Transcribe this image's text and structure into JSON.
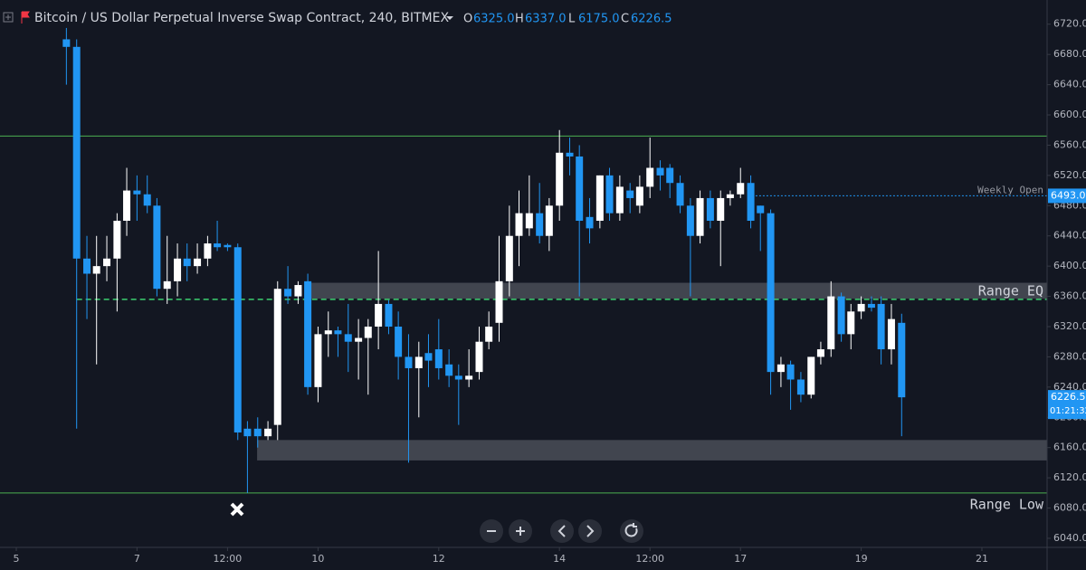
{
  "chart_data": {
    "type": "candlestick",
    "title": "Bitcoin / US Dollar Perpetual Inverse Swap Contract, 240, BITMEX",
    "ohlc_legend": [
      {
        "key": "O",
        "value": 6325,
        "label": "6325.0"
      },
      {
        "key": "H",
        "value": 6337,
        "label": "6337.0"
      },
      {
        "key": "L",
        "value": 6175,
        "label": "6175.0"
      },
      {
        "key": "C",
        "value": 6226.5,
        "label": "6226.5"
      }
    ],
    "up_color": "#ffffff",
    "down_color": "#2196f3",
    "x": [
      5.83,
      6.0,
      6.17,
      6.33,
      6.5,
      6.67,
      6.83,
      7.0,
      7.17,
      7.33,
      7.5,
      7.67,
      7.83,
      8.0,
      8.17,
      8.33,
      8.5,
      8.67,
      8.83,
      9.0,
      9.17,
      9.33,
      9.5,
      9.67,
      9.83,
      10.0,
      10.17,
      10.33,
      10.5,
      10.67,
      10.83,
      11.0,
      11.17,
      11.33,
      11.5,
      11.67,
      11.83,
      12.0,
      12.17,
      12.33,
      12.5,
      12.67,
      12.83,
      13.0,
      13.17,
      13.33,
      13.5,
      13.67,
      13.83,
      14.0,
      14.17,
      14.33,
      14.5,
      14.67,
      14.83,
      15.0,
      15.17,
      15.33,
      15.5,
      15.67,
      15.83,
      16.0,
      16.17,
      16.33,
      16.5,
      16.67,
      16.83,
      17.0,
      17.17,
      17.33,
      17.5,
      17.67,
      17.83,
      18.0,
      18.17,
      18.33,
      18.5,
      18.67,
      18.83,
      19.0,
      19.17,
      19.33,
      19.5,
      19.67
    ],
    "open": [
      6700,
      6690,
      6410,
      6390,
      6400,
      6410,
      6460,
      6500,
      6495,
      6480,
      6370,
      6380,
      6410,
      6400,
      6410,
      6430,
      6428,
      6425,
      6185,
      6185,
      6175,
      6190,
      6370,
      6360,
      6380,
      6240,
      6310,
      6315,
      6310,
      6300,
      6305,
      6320,
      6350,
      6320,
      6280,
      6265,
      6285,
      6290,
      6270,
      6255,
      6250,
      6260,
      6300,
      6325,
      6380,
      6440,
      6450,
      6470,
      6440,
      6480,
      6550,
      6545,
      6465,
      6460,
      6520,
      6470,
      6500,
      6480,
      6505,
      6530,
      6530,
      6510,
      6480,
      6440,
      6490,
      6460,
      6490,
      6495,
      6510,
      6480,
      6470,
      6260,
      6270,
      6250,
      6230,
      6280,
      6290,
      6360,
      6310,
      6340,
      6350,
      6350,
      6290,
      6325
    ],
    "high": [
      6715,
      6700,
      6440,
      6440,
      6440,
      6470,
      6530,
      6520,
      6520,
      6490,
      6440,
      6430,
      6430,
      6430,
      6440,
      6460,
      6430,
      6430,
      6195,
      6200,
      6195,
      6380,
      6400,
      6380,
      6390,
      6320,
      6340,
      6320,
      6350,
      6330,
      6330,
      6420,
      6355,
      6340,
      6310,
      6300,
      6310,
      6330,
      6290,
      6270,
      6290,
      6320,
      6340,
      6440,
      6480,
      6500,
      6520,
      6510,
      6490,
      6580,
      6570,
      6560,
      6490,
      6520,
      6530,
      6520,
      6510,
      6520,
      6570,
      6540,
      6535,
      6520,
      6490,
      6500,
      6500,
      6500,
      6500,
      6530,
      6520,
      6480,
      6475,
      6280,
      6275,
      6260,
      6280,
      6300,
      6380,
      6365,
      6350,
      6360,
      6360,
      6360,
      6350,
      6337
    ],
    "low": [
      6640,
      6185,
      6330,
      6270,
      6380,
      6340,
      6440,
      6460,
      6470,
      6360,
      6350,
      6360,
      6380,
      6390,
      6400,
      6420,
      6420,
      6170,
      6100,
      6160,
      6170,
      6170,
      6350,
      6350,
      6230,
      6220,
      6280,
      6280,
      6260,
      6250,
      6230,
      6290,
      6310,
      6250,
      6140,
      6200,
      6240,
      6250,
      6240,
      6190,
      6240,
      6250,
      6290,
      6300,
      6360,
      6400,
      6440,
      6430,
      6420,
      6460,
      6520,
      6360,
      6430,
      6450,
      6460,
      6460,
      6470,
      6470,
      6490,
      6500,
      6490,
      6470,
      6360,
      6430,
      6450,
      6400,
      6480,
      6490,
      6450,
      6420,
      6230,
      6240,
      6210,
      6220,
      6225,
      6270,
      6280,
      6300,
      6290,
      6330,
      6340,
      6270,
      6270,
      6175
    ],
    "close": [
      6690,
      6410,
      6390,
      6400,
      6410,
      6460,
      6500,
      6495,
      6480,
      6370,
      6380,
      6410,
      6400,
      6410,
      6430,
      6425,
      6425,
      6180,
      6175,
      6175,
      6185,
      6370,
      6360,
      6375,
      6240,
      6310,
      6315,
      6310,
      6300,
      6305,
      6320,
      6350,
      6320,
      6280,
      6265,
      6280,
      6275,
      6265,
      6255,
      6250,
      6255,
      6300,
      6320,
      6380,
      6440,
      6470,
      6470,
      6440,
      6480,
      6550,
      6545,
      6460,
      6450,
      6520,
      6470,
      6505,
      6490,
      6505,
      6530,
      6520,
      6510,
      6480,
      6440,
      6490,
      6460,
      6490,
      6495,
      6510,
      6460,
      6470,
      6260,
      6270,
      6250,
      6230,
      6280,
      6290,
      6360,
      6310,
      6340,
      6350,
      6345,
      6290,
      6330,
      6226.5
    ],
    "xlim": [
      4.73,
      22.08
    ],
    "xticks": [
      5,
      7,
      {
        "value": 8.5,
        "label": "12:00"
      },
      10,
      12,
      14,
      {
        "value": 15.5,
        "label": "12:00"
      },
      17,
      19,
      21
    ],
    "ylim": [
      6028,
      6752
    ],
    "yticks": [
      {
        "value": 6040,
        "label": "6040.0"
      },
      {
        "value": 6080,
        "label": "6080.0"
      },
      {
        "value": 6120,
        "label": "6120.0"
      },
      {
        "value": 6160,
        "label": "6160.0"
      },
      {
        "value": 6200,
        "label": "6200.0"
      },
      {
        "value": 6240,
        "label": "6240.0"
      },
      {
        "value": 6280,
        "label": "6280.0"
      },
      {
        "value": 6320,
        "label": "6320.0"
      },
      {
        "value": 6360,
        "label": "6360.0"
      },
      {
        "value": 6400,
        "label": "6400.0"
      },
      {
        "value": 6440,
        "label": "6440.0"
      },
      {
        "value": 6480,
        "label": "6480.0"
      },
      {
        "value": 6520,
        "label": "6520.0"
      },
      {
        "value": 6560,
        "label": "6560.0"
      },
      {
        "value": 6600,
        "label": "6600.0"
      },
      {
        "value": 6640,
        "label": "6640.0"
      },
      {
        "value": 6680,
        "label": "6680.0"
      },
      {
        "value": 6720,
        "label": "6720.0"
      }
    ],
    "zones": [
      {
        "from": 6357,
        "to": 6378,
        "start": 9.83,
        "color": "#4a4d57"
      },
      {
        "from": 6143,
        "to": 6170,
        "start": 8.99,
        "color": "#4a4d57"
      }
    ],
    "levels": [
      {
        "value": 6572,
        "color": "#4caf50",
        "style": "solid"
      },
      {
        "value": 6100,
        "color": "#4caf50",
        "style": "solid",
        "label": "Range Low"
      },
      {
        "value": 6356,
        "color": "#3cd070",
        "style": "dashed",
        "start": 6.0,
        "label": "Range EQ"
      },
      {
        "value": 6493,
        "color": "#2196f3",
        "style": "dotted",
        "start": 17.25,
        "label": "Weekly Open",
        "price_label": "6493.0"
      }
    ],
    "last_price": 6226.5,
    "countdown": "01:21:32"
  }
}
